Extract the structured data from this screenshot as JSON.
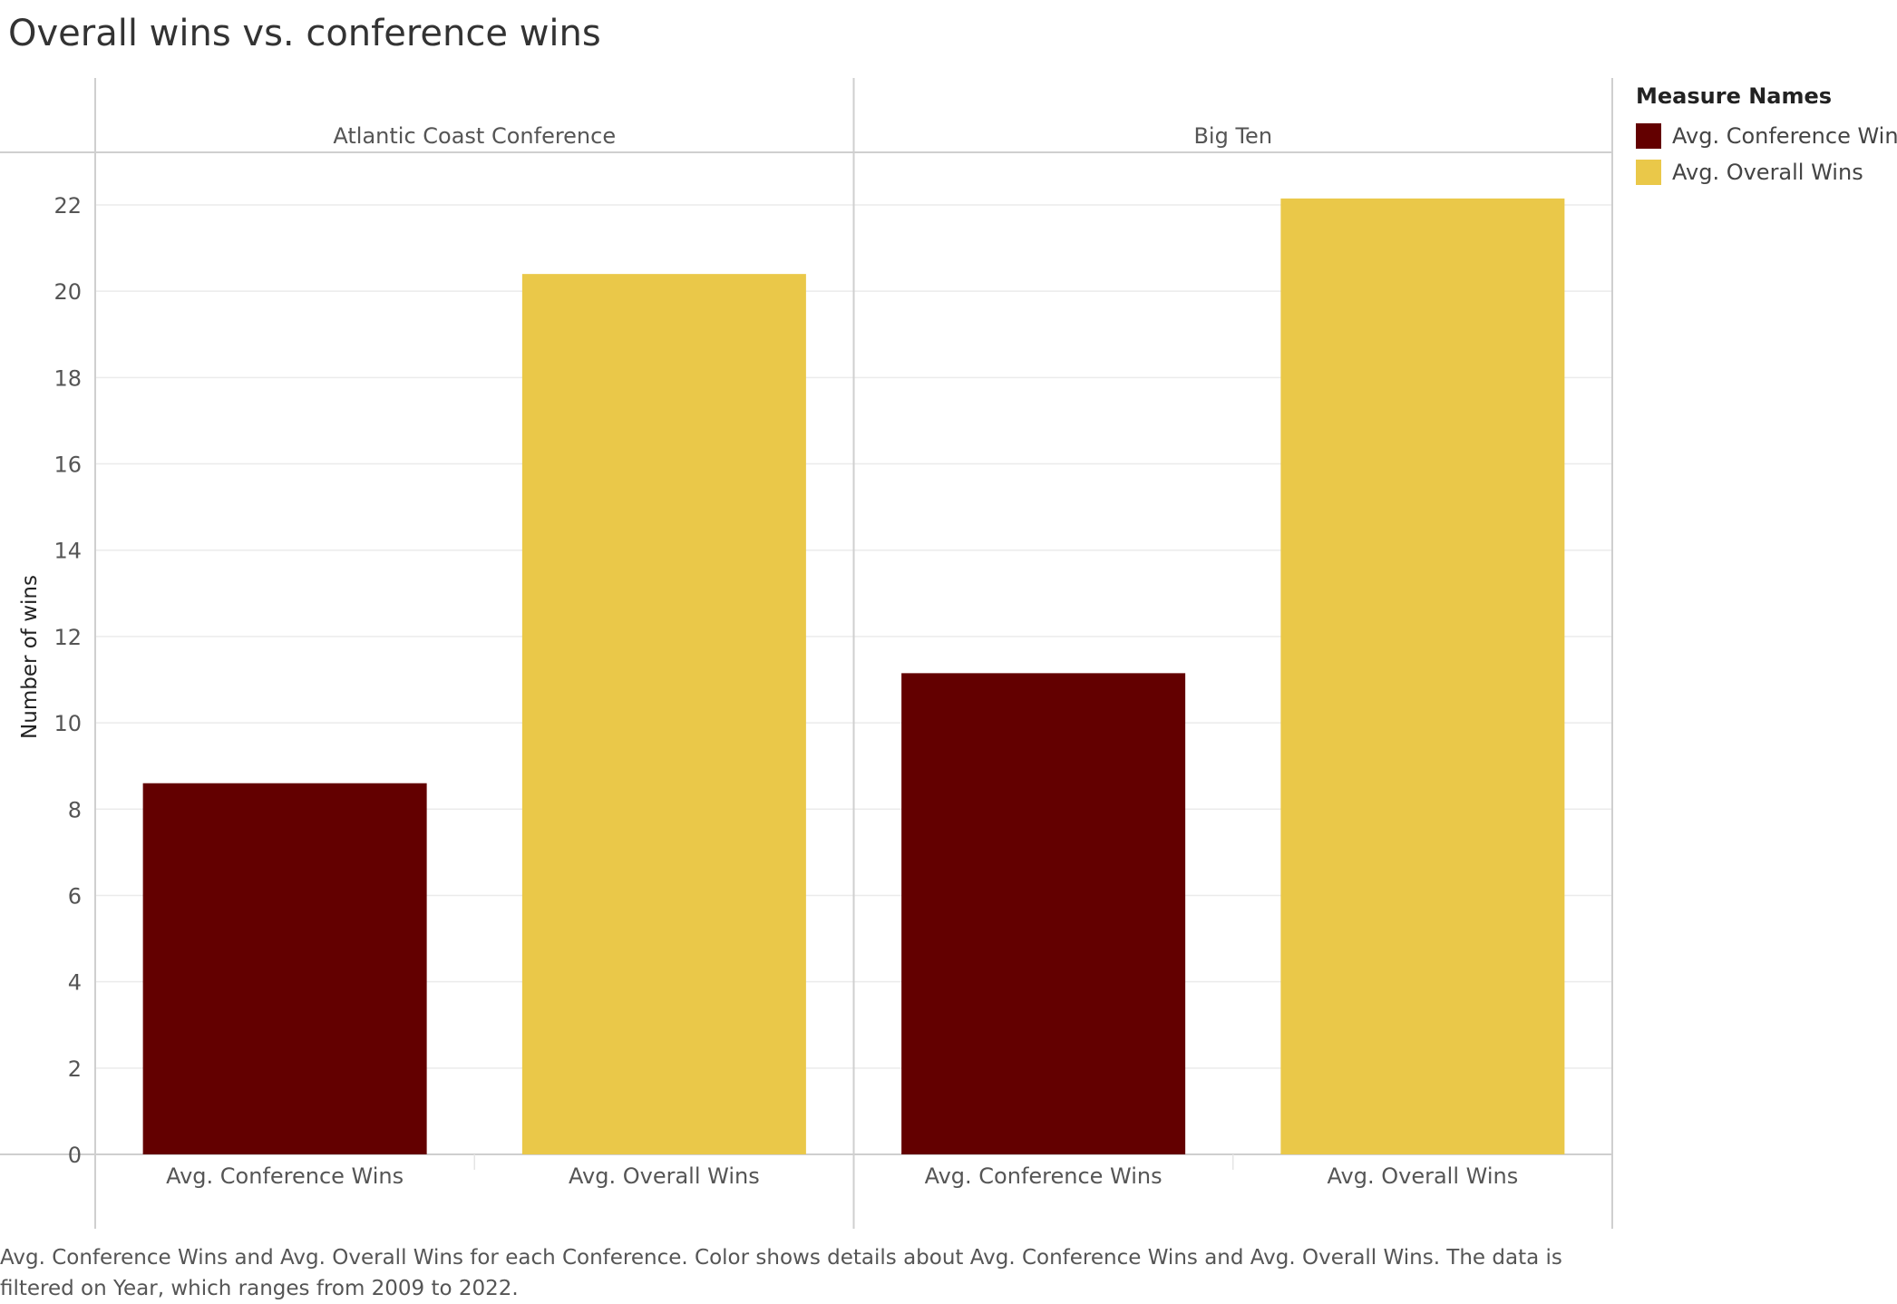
{
  "title": "Overall wins vs. conference wins",
  "legend": {
    "title": "Measure Names",
    "items": [
      {
        "label": "Avg. Conference Wins",
        "color": "#630000"
      },
      {
        "label": "Avg. Overall Wins",
        "color": "#EAC849"
      }
    ]
  },
  "caption": "Avg. Conference Wins and Avg. Overall Wins for each Conference.  Color shows details about Avg. Conference Wins and Avg. Overall Wins. The data is filtered on Year, which ranges from 2009 to 2022.",
  "chart_data": {
    "type": "bar",
    "title": "Overall wins vs. conference wins",
    "ylabel": "Number of wins",
    "xlabel": "",
    "ylim": [
      0,
      22.5
    ],
    "yticks": [
      0,
      2,
      4,
      6,
      8,
      10,
      12,
      14,
      16,
      18,
      20,
      22
    ],
    "grid": true,
    "legend_position": "right",
    "panels": [
      {
        "name": "Atlantic Coast Conference",
        "categories": [
          "Avg. Conference Wins",
          "Avg. Overall Wins"
        ],
        "values": [
          8.6,
          20.4
        ],
        "colors": [
          "#630000",
          "#EAC849"
        ]
      },
      {
        "name": "Big Ten",
        "categories": [
          "Avg. Conference Wins",
          "Avg. Overall Wins"
        ],
        "values": [
          11.15,
          22.15
        ],
        "colors": [
          "#630000",
          "#EAC849"
        ]
      }
    ]
  }
}
